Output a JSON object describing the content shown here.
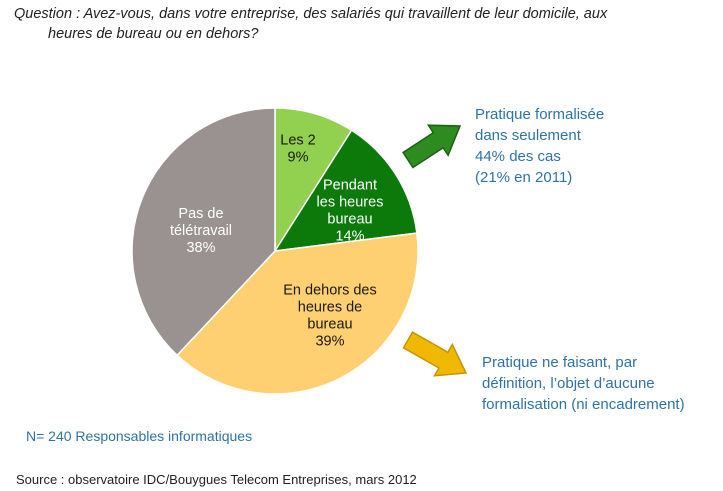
{
  "question": {
    "line1": "Question : Avez-vous, dans votre entreprise, des salariés qui travaillent de leur domicile, aux",
    "line2": "heures de bureau ou en dehors?"
  },
  "chart_data": {
    "type": "pie",
    "title": "",
    "slices": [
      {
        "label_lines": [
          "Les 2",
          "9%"
        ],
        "value": 9,
        "color": "#92d050",
        "text_color": "#1a1a1a"
      },
      {
        "label_lines": [
          "Pendant",
          "les heures",
          "bureau",
          "14%"
        ],
        "value": 14,
        "color": "#0b7a0b",
        "text_color": "#ffffff"
      },
      {
        "label_lines": [
          "En dehors des",
          "heures de",
          "bureau",
          "39%"
        ],
        "value": 39,
        "color": "#ffd071",
        "text_color": "#1a1a1a"
      },
      {
        "label_lines": [
          "Pas de",
          "télétravail",
          "38%"
        ],
        "value": 38,
        "color": "#9a9290",
        "text_color": "#ffffff"
      }
    ]
  },
  "notes": {
    "green": [
      "Pratique formalisée",
      "dans seulement",
      "44% des cas",
      "(21% en 2011)"
    ],
    "yellow": [
      "Pratique ne faisant, par",
      "définition, l’objet d’aucune",
      "formalisation (ni encadrement)"
    ]
  },
  "colors": {
    "green_arrow": "#2e8b1f",
    "yellow_arrow": "#f0b800",
    "note_text": "#2e74a6"
  },
  "sample": "N= 240 Responsables informatiques",
  "source": "Source : observatoire IDC/Bouygues Telecom Entreprises, mars 2012"
}
